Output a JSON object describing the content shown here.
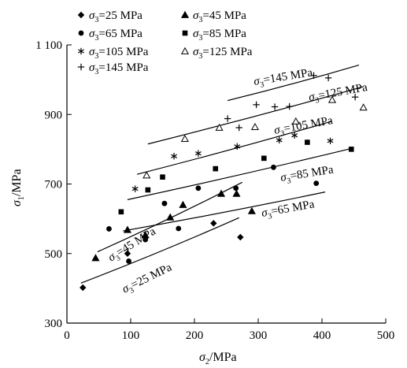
{
  "chart_data": {
    "type": "scatter",
    "title": "",
    "xlabel": "σ2/MPa",
    "ylabel": "σ1/MPa",
    "xlim": [
      0,
      500
    ],
    "ylim": [
      300,
      1100
    ],
    "x_ticks": [
      "0",
      "100",
      "200",
      "300",
      "400",
      "500"
    ],
    "y_ticks": [
      "300",
      "500",
      "700",
      "900",
      "1 100"
    ],
    "legend_position": "top-left",
    "grid": false,
    "series": [
      {
        "name": "σ3=25 MPa",
        "marker": "diamond",
        "points": [
          [
            25,
            402
          ],
          [
            95,
            500
          ],
          [
            230,
            587
          ],
          [
            272,
            547
          ]
        ],
        "fit": [
          [
            22,
            415
          ],
          [
            270,
            603
          ]
        ],
        "fit_label": "σ3=25 MPa"
      },
      {
        "name": "σ3=45 MPa",
        "marker": "triangle",
        "points": [
          [
            45,
            487
          ],
          [
            95,
            568
          ],
          [
            123,
            553
          ],
          [
            162,
            604
          ],
          [
            182,
            640
          ],
          [
            242,
            672
          ],
          [
            266,
            672
          ],
          [
            290,
            622
          ]
        ],
        "fit": [
          [
            48,
            505
          ],
          [
            275,
            705
          ]
        ],
        "fit_label": "σ3=45 MPa"
      },
      {
        "name": "σ3=65 MPa",
        "marker": "circle",
        "points": [
          [
            66,
            571
          ],
          [
            97,
            478
          ],
          [
            123,
            540
          ],
          [
            153,
            644
          ],
          [
            175,
            572
          ],
          [
            206,
            688
          ],
          [
            265,
            688
          ],
          [
            324,
            748
          ],
          [
            391,
            702
          ]
        ],
        "fit": [
          [
            88,
            565
          ],
          [
            405,
            677
          ]
        ],
        "fit_label": "σ3=65 MPa"
      },
      {
        "name": "σ3=85 MPa",
        "marker": "square",
        "points": [
          [
            85,
            620
          ],
          [
            127,
            683
          ],
          [
            150,
            720
          ],
          [
            233,
            744
          ],
          [
            309,
            774
          ],
          [
            377,
            820
          ],
          [
            446,
            800
          ]
        ],
        "fit": [
          [
            95,
            655
          ],
          [
            448,
            803
          ]
        ],
        "fit_label": "σ3=85 MPa"
      },
      {
        "name": "σ3=105 MPa",
        "marker": "asterisk",
        "points": [
          [
            107,
            686
          ],
          [
            168,
            780
          ],
          [
            206,
            788
          ],
          [
            267,
            808
          ],
          [
            333,
            826
          ],
          [
            357,
            840
          ],
          [
            413,
            824
          ]
        ],
        "fit": [
          [
            110,
            728
          ],
          [
            415,
            880
          ]
        ],
        "fit_label": "σ3=105 MPa"
      },
      {
        "name": "σ3=125 MPa",
        "marker": "triangle-open",
        "points": [
          [
            125,
            725
          ],
          [
            185,
            830
          ],
          [
            239,
            862
          ],
          [
            295,
            864
          ],
          [
            359,
            880
          ],
          [
            416,
            942
          ],
          [
            465,
            920
          ]
        ],
        "fit": [
          [
            127,
            815
          ],
          [
            465,
            980
          ]
        ],
        "fit_label": "σ3=125 MPa"
      },
      {
        "name": "σ3=145 MPa",
        "marker": "plus",
        "points": [
          [
            252,
            888
          ],
          [
            270,
            862
          ],
          [
            297,
            928
          ],
          [
            326,
            922
          ],
          [
            349,
            923
          ],
          [
            387,
            1012
          ],
          [
            410,
            1005
          ],
          [
            452,
            950
          ]
        ],
        "fit": [
          [
            252,
            940
          ],
          [
            458,
            1042
          ]
        ],
        "fit_label": "σ3=145 MPa"
      }
    ]
  }
}
